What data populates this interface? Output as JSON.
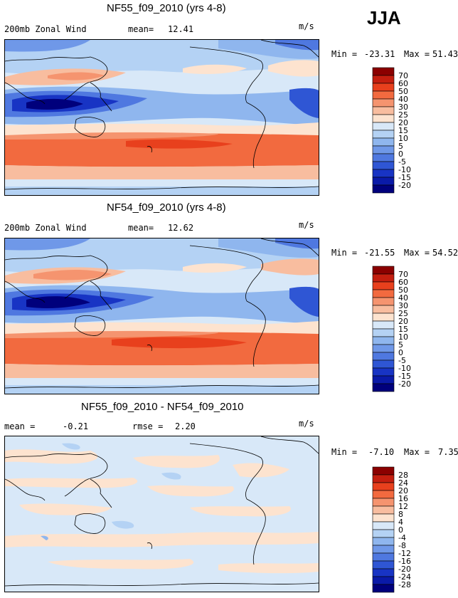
{
  "season": "JJA",
  "coastline_color": "#000000",
  "chart_data": [
    {
      "type": "heatmap",
      "title": "NF55_f09_2010 (yrs 4-8)",
      "variable": "200mb Zonal Wind",
      "mean_label": "mean=",
      "mean_value": "12.41",
      "units": "m/s",
      "min_label": "Min =",
      "min_value": "-23.31",
      "max_label": "Max =",
      "max_value": "51.43",
      "colorbar_levels": [
        "70",
        "60",
        "50",
        "40",
        "30",
        "25",
        "20",
        "15",
        "10",
        "5",
        "0",
        "-5",
        "-10",
        "-15",
        "-20"
      ],
      "colorbar_colors": [
        "#8b0000",
        "#c41e0f",
        "#e8401d",
        "#f26a3f",
        "#f5946f",
        "#f8bd9f",
        "#fde3cf",
        "#d8e8f8",
        "#b4d2f4",
        "#8fb6ee",
        "#6f98e8",
        "#4f78e0",
        "#2f56d4",
        "#1834c4",
        "#0a1aa8",
        "#00007c"
      ]
    },
    {
      "type": "heatmap",
      "title": "NF54_f09_2010 (yrs 4-8)",
      "variable": "200mb Zonal Wind",
      "mean_label": "mean=",
      "mean_value": "12.62",
      "units": "m/s",
      "min_label": "Min =",
      "min_value": "-21.55",
      "max_label": "Max =",
      "max_value": "54.52",
      "colorbar_levels": [
        "70",
        "60",
        "50",
        "40",
        "30",
        "25",
        "20",
        "15",
        "10",
        "5",
        "0",
        "-5",
        "-10",
        "-15",
        "-20"
      ],
      "colorbar_colors": [
        "#8b0000",
        "#c41e0f",
        "#e8401d",
        "#f26a3f",
        "#f5946f",
        "#f8bd9f",
        "#fde3cf",
        "#d8e8f8",
        "#b4d2f4",
        "#8fb6ee",
        "#6f98e8",
        "#4f78e0",
        "#2f56d4",
        "#1834c4",
        "#0a1aa8",
        "#00007c"
      ]
    },
    {
      "type": "heatmap",
      "title": "NF55_f09_2010 - NF54_f09_2010",
      "variable": "mean =",
      "mean_value": "-0.21",
      "rmse_label": "rmse =",
      "rmse_value": "2.20",
      "units": "m/s",
      "min_label": "Min =",
      "min_value": "-7.10",
      "max_label": "Max =",
      "max_value": "7.35",
      "colorbar_levels": [
        "28",
        "24",
        "20",
        "16",
        "12",
        "8",
        "4",
        "0",
        "-4",
        "-8",
        "-12",
        "-16",
        "-20",
        "-24",
        "-28"
      ],
      "colorbar_colors": [
        "#8b0000",
        "#c41e0f",
        "#e8401d",
        "#f26a3f",
        "#f5946f",
        "#f8bd9f",
        "#fde3cf",
        "#d8e8f8",
        "#b4d2f4",
        "#8fb6ee",
        "#6f98e8",
        "#4f78e0",
        "#2f56d4",
        "#1834c4",
        "#0a1aa8",
        "#00007c"
      ]
    }
  ]
}
